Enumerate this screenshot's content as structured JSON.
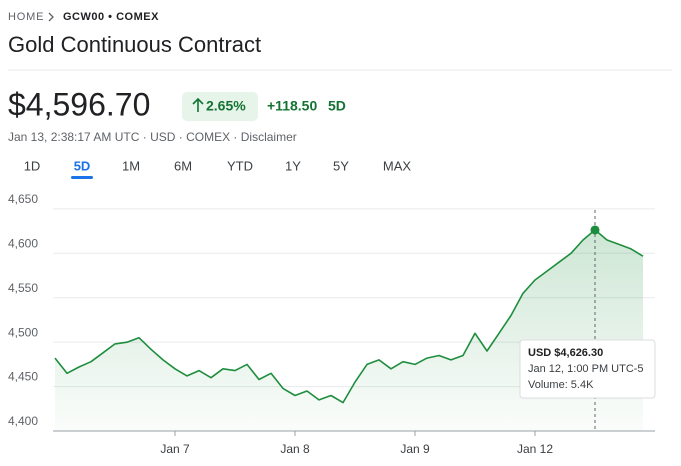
{
  "breadcrumb": {
    "home": "HOME",
    "symbol": "GCW00 • COMEX"
  },
  "title": "Gold Continuous Contract",
  "quote": {
    "price": "$4,596.70",
    "change_percent": "2.65%",
    "change": "+118.50",
    "period": "5D",
    "details": "Jan 13, 2:38:17 AM UTC · USD · COMEX · Disclaimer"
  },
  "tabs": [
    "1D",
    "5D",
    "1M",
    "6M",
    "YTD",
    "1Y",
    "5Y",
    "MAX"
  ],
  "tooltip": {
    "price": "USD $4,626.30",
    "time": "Jan 12, 1:00 PM UTC-5",
    "volume": "Volume: 5.4K"
  },
  "chart_data": {
    "type": "line",
    "x": [
      0,
      0.1,
      0.2,
      0.3,
      0.4,
      0.5,
      0.6,
      0.7,
      0.8,
      0.9,
      1,
      1.1,
      1.2,
      1.3,
      1.4,
      1.5,
      1.6,
      1.7,
      1.8,
      1.9,
      2,
      2.1,
      2.2,
      2.3,
      2.4,
      2.5,
      2.6,
      2.7,
      2.8,
      2.9,
      3,
      3.1,
      3.2,
      3.3,
      3.4,
      3.5,
      3.6,
      3.7,
      3.8,
      3.9,
      4,
      4.1,
      4.2,
      4.3,
      4.4,
      4.5,
      4.6,
      4.7,
      4.8,
      4.9
    ],
    "series": [
      {
        "color": "#1e8e3e",
        "values": [
          4482,
          4465,
          4472,
          4478,
          4488,
          4498,
          4500,
          4505,
          4492,
          4480,
          4470,
          4462,
          4468,
          4460,
          4470,
          4468,
          4475,
          4458,
          4465,
          4448,
          4440,
          4445,
          4435,
          4440,
          4432,
          4455,
          4475,
          4480,
          4470,
          4478,
          4475,
          4482,
          4485,
          4480,
          4485,
          4510,
          4490,
          4510,
          4530,
          4555,
          4570,
          4580,
          4590,
          4600,
          4615,
          4626.3,
          4615,
          4610,
          4605,
          4596.7
        ]
      }
    ],
    "xlim": [
      0,
      5
    ],
    "xticks": [
      {
        "value": 1,
        "label": "Jan 7"
      },
      {
        "value": 2,
        "label": "Jan 8"
      },
      {
        "value": 3,
        "label": "Jan 9"
      },
      {
        "value": 4,
        "label": "Jan 12"
      }
    ],
    "ylim": [
      4400,
      4660
    ],
    "yticks": [
      {
        "value": 4400,
        "label": "4,400"
      },
      {
        "value": 4450,
        "label": "4,450"
      },
      {
        "value": 4500,
        "label": "4,500"
      },
      {
        "value": 4550,
        "label": "4,550"
      },
      {
        "value": 4600,
        "label": "4,600"
      },
      {
        "value": 4650,
        "label": "4,650"
      }
    ],
    "grid": true
  }
}
